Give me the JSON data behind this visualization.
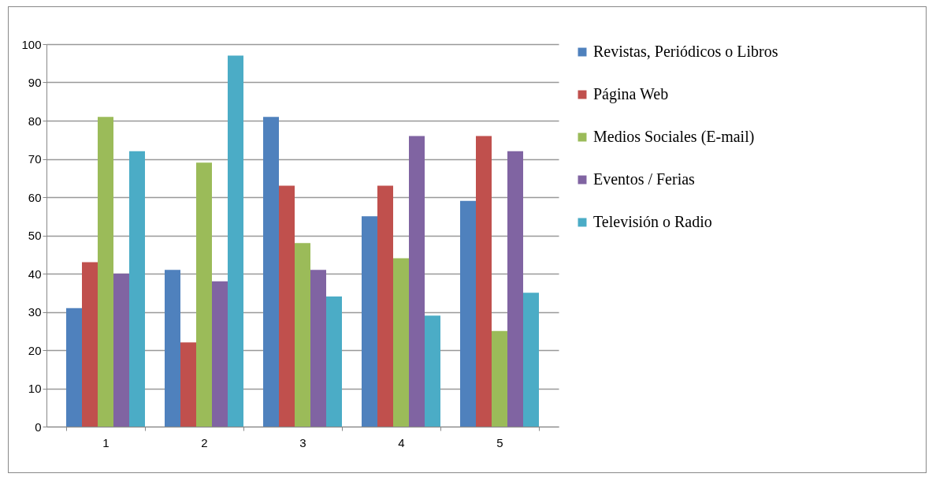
{
  "chart_data": {
    "type": "bar",
    "categories": [
      "1",
      "2",
      "3",
      "4",
      "5"
    ],
    "series": [
      {
        "name": "Revistas, Periódicos o Libros",
        "color": "#4f81bd",
        "values": [
          31,
          41,
          81,
          55,
          59
        ]
      },
      {
        "name": "Página Web",
        "color": "#c0504d",
        "values": [
          43,
          22,
          63,
          63,
          76
        ]
      },
      {
        "name": "Medios Sociales (E-mail)",
        "color": "#9bbb59",
        "values": [
          81,
          69,
          48,
          44,
          25
        ]
      },
      {
        "name": "Eventos / Ferias",
        "color": "#8064a2",
        "values": [
          40,
          38,
          41,
          76,
          72
        ]
      },
      {
        "name": "Televisión o Radio",
        "color": "#4bacc6",
        "values": [
          72,
          97,
          34,
          29,
          35
        ]
      }
    ],
    "ylim": [
      0,
      100
    ],
    "yticks": [
      0,
      10,
      20,
      30,
      40,
      50,
      60,
      70,
      80,
      90,
      100
    ],
    "grid": "y",
    "legend": "right"
  }
}
